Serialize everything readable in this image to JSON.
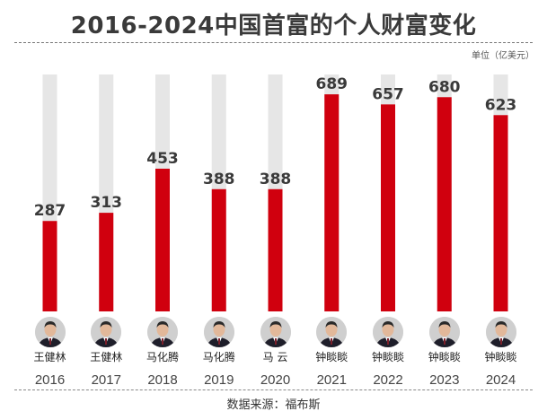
{
  "title": "2016-2024中国首富的个人财富变化",
  "unit": "单位（亿美元）",
  "source": "数据来源：福布斯",
  "colors": {
    "bar": "#d0000e",
    "track": "#e6e6e6",
    "value_text": "#3a3a3a"
  },
  "chart_data": {
    "type": "bar",
    "categories": [
      "2016",
      "2017",
      "2018",
      "2019",
      "2020",
      "2021",
      "2022",
      "2023",
      "2024"
    ],
    "names": [
      "王健林",
      "王健林",
      "马化腾",
      "马化腾",
      "马 云",
      "钟睒睒",
      "钟睒睒",
      "钟睒睒",
      "钟睒睒"
    ],
    "values": [
      287,
      313,
      453,
      388,
      388,
      689,
      657,
      680,
      623
    ],
    "ylim": [
      0,
      752
    ],
    "title": "2016-2024中国首富的个人财富变化",
    "xlabel": "",
    "ylabel": "单位（亿美元）",
    "grid": false,
    "legend": "none"
  }
}
